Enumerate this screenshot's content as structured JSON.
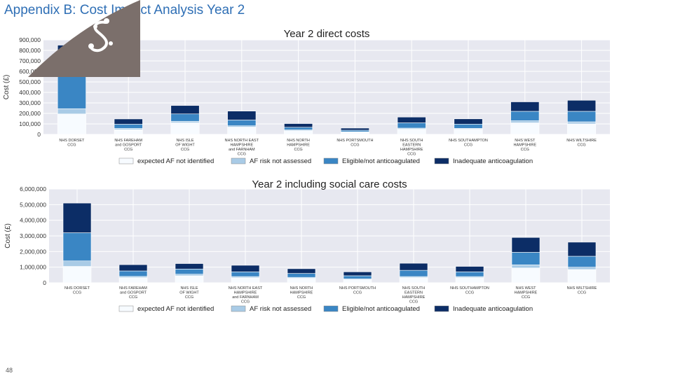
{
  "slide": {
    "title": "Appendix B: Cost Impact Analysis Year 2",
    "page_number": "48"
  },
  "colors": {
    "expected": "#f7fbff",
    "risk": "#a9cbe6",
    "eligible": "#3a86c4",
    "inadequate": "#0c2d66",
    "plot_bg": "#e7e8f0",
    "grid": "#ffffff",
    "corner_shape": "#7b6f6b"
  },
  "chart_data": [
    {
      "type": "bar",
      "stacked": true,
      "title": "Year 2 direct costs",
      "ylabel": "Cost (£)",
      "ylim": [
        0,
        900000
      ],
      "yticks": [
        0,
        100000,
        200000,
        300000,
        400000,
        500000,
        600000,
        700000,
        800000,
        900000
      ],
      "ytick_labels": [
        "0",
        "100,000",
        "200,000",
        "300,000",
        "400,000",
        "500,000",
        "600,000",
        "700,000",
        "800,000",
        "900,000"
      ],
      "categories": [
        [
          "NHS DORSET",
          "CCG"
        ],
        [
          "NHS FAREHAM",
          "and GOSPORT",
          "CCG"
        ],
        [
          "NHS ISLE",
          "OF WIGHT",
          "CCG"
        ],
        [
          "NHS NORTH EAST",
          "HAMPSHIRE",
          "and FARNHAM",
          "CCG"
        ],
        [
          "NHS NORTH",
          "HAMPSHIRE",
          "CCG"
        ],
        [
          "NHS PORTSMOUTH",
          "CCG"
        ],
        [
          "NHS SOUTH",
          "EASTERN",
          "HAMPSHIRE",
          "CCG"
        ],
        [
          "NHS SOUTHAMPTON",
          "CCG"
        ],
        [
          "NHS WEST",
          "HAMPSHIRE",
          "CCG"
        ],
        [
          "NHS WILTSHIRE",
          "CCG"
        ]
      ],
      "series": [
        {
          "name": "expected AF not identified",
          "values": [
            195000,
            45000,
            110000,
            70000,
            35000,
            20000,
            50000,
            50000,
            110000,
            100000
          ]
        },
        {
          "name": "AF risk not assessed",
          "values": [
            50000,
            12000,
            15000,
            12000,
            8000,
            5000,
            10000,
            8000,
            20000,
            20000
          ]
        },
        {
          "name": "Eligible/not anticoagulated",
          "values": [
            305000,
            40000,
            70000,
            55000,
            25000,
            15000,
            50000,
            40000,
            90000,
            100000
          ]
        },
        {
          "name": "Inadequate anticoagulation",
          "values": [
            300000,
            50000,
            80000,
            85000,
            35000,
            20000,
            55000,
            50000,
            90000,
            105000
          ]
        }
      ]
    },
    {
      "type": "bar",
      "stacked": true,
      "title": "Year 2 including social care costs",
      "ylabel": "Cost (£)",
      "ylim": [
        0,
        6000000
      ],
      "yticks": [
        0,
        1000000,
        2000000,
        3000000,
        4000000,
        5000000,
        6000000
      ],
      "ytick_labels": [
        "0",
        "1,000,000",
        "2,000,000",
        "3,000,000",
        "4,000,000",
        "5,000,000",
        "6,000,000"
      ],
      "categories": [
        [
          "NHS DORSET",
          "CCG"
        ],
        [
          "NHS FAREHAM",
          "and GOSPORT",
          "CCG"
        ],
        [
          "NHS ISLE",
          "OF WIGHT",
          "CCG"
        ],
        [
          "NHS NORTH EAST",
          "HAMPSHIRE",
          "and FARNHAM",
          "CCG"
        ],
        [
          "NHS NORTH",
          "HAMPSHIRE",
          "CCG"
        ],
        [
          "NHS PORTSMOUTH",
          "CCG"
        ],
        [
          "NHS SOUTH",
          "EASTERN",
          "HAMPSHIRE",
          "CCG"
        ],
        [
          "NHS SOUTHAMPTON",
          "CCG"
        ],
        [
          "NHS WEST",
          "HAMPSHIRE",
          "CCG"
        ],
        [
          "NHS WILTSHIRE",
          "CCG"
        ]
      ],
      "series": [
        {
          "name": "expected AF not identified",
          "values": [
            1050000,
            330000,
            450000,
            320000,
            290000,
            200000,
            330000,
            330000,
            950000,
            850000
          ]
        },
        {
          "name": "AF risk not assessed",
          "values": [
            350000,
            80000,
            100000,
            80000,
            60000,
            50000,
            70000,
            70000,
            200000,
            150000
          ]
        },
        {
          "name": "Eligible/not anticoagulated",
          "values": [
            1800000,
            350000,
            330000,
            300000,
            250000,
            200000,
            400000,
            300000,
            800000,
            700000
          ]
        },
        {
          "name": "Inadequate anticoagulation",
          "values": [
            1900000,
            400000,
            350000,
            420000,
            300000,
            250000,
            450000,
            350000,
            950000,
            900000
          ]
        }
      ]
    }
  ]
}
